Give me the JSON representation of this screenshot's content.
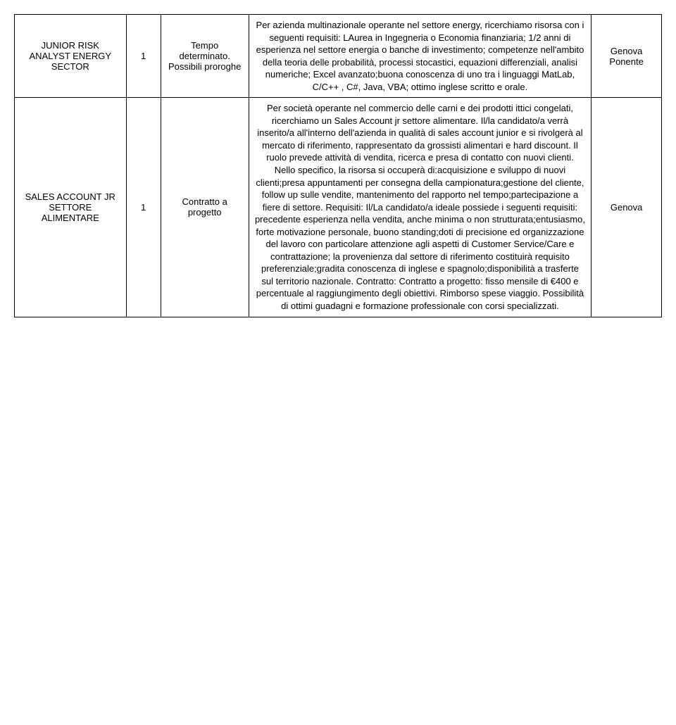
{
  "rows": [
    {
      "title": "JUNIOR RISK ANALYST ENERGY SECTOR",
      "count": "1",
      "contract": "Tempo determinato. Possibili proroghe",
      "description": "Per azienda multinazionale operante nel settore energy, ricerchiamo risorsa con i seguenti requisiti: LAurea in Ingegneria o Economia finanziaria; 1/2 anni di esperienza nel settore energia o banche di investimento; competenze nell'ambito della teoria delle probabilità, processi stocastici, equazioni differenziali, analisi numeriche; Excel avanzato;buona conoscenza di uno tra i linguaggi MatLab, C/C++ , C#, Java, VBA; ottimo inglese scritto e orale.",
      "location": "Genova Ponente"
    },
    {
      "title": "SALES ACCOUNT JR SETTORE ALIMENTARE",
      "count": "1",
      "contract": "Contratto a progetto",
      "description": "Per società operante nel commercio delle carni e dei prodotti ittici congelati, ricerchiamo un Sales Account jr settore alimentare. Il/la candidato/a verrà inserito/a all'interno dell'azienda in qualità di sales account junior e si rivolgerà al mercato di riferimento, rappresentato da grossisti alimentari e hard discount. Il ruolo prevede attività di vendita, ricerca e presa di contatto con nuovi clienti. Nello specifico, la risorsa si occuperà di:acquisizione e sviluppo di nuovi clienti;presa appuntamenti per consegna della campionatura;gestione del cliente, follow up sulle vendite, mantenimento del rapporto nel tempo;partecipazione a fiere di settore. Requisiti: Il/La candidato/a ideale possiede i seguenti requisiti: precedente esperienza nella vendita, anche minima o non strutturata;entusiasmo, forte motivazione personale, buono standing;doti di precisione ed organizzazione del lavoro con particolare attenzione agli aspetti di Customer Service/Care e contrattazione; la provenienza dal settore di riferimento costituirà requisito preferenziale;gradita conoscenza di inglese e spagnolo;disponibilità a trasferte sul territorio nazionale.\nContratto: Contratto a progetto: fisso mensile di €400 e percentuale al raggiungimento degli obiettivi. Rimborso spese viaggio. Possibilità di ottimi guadagni e formazione professionale con corsi specializzati.",
      "location": "Genova"
    }
  ]
}
